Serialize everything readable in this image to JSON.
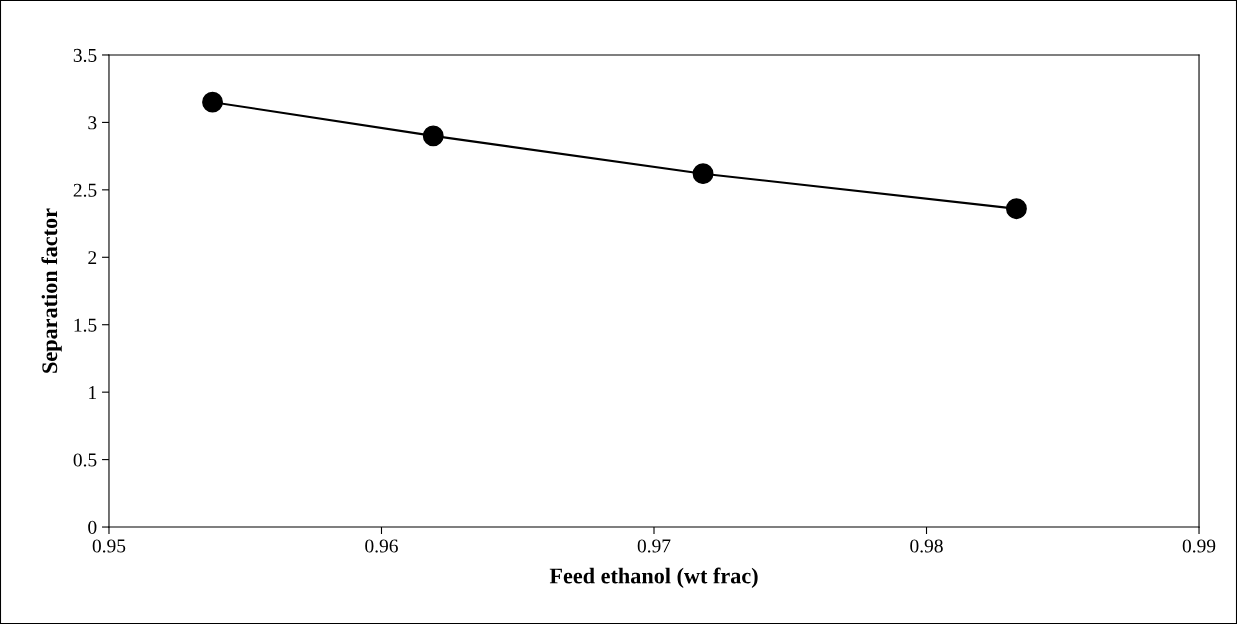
{
  "chart_data": {
    "type": "line",
    "xlabel": "Feed ethanol (wt frac)",
    "ylabel": "Separation factor",
    "x": [
      0.9538,
      0.9619,
      0.9718,
      0.9833
    ],
    "series": [
      {
        "color": "#000000",
        "values": [
          3.15,
          2.9,
          2.62,
          2.36
        ]
      }
    ],
    "xlim": [
      0.95,
      0.99
    ],
    "xticks": [
      0.95,
      0.96,
      0.97,
      0.98,
      0.99
    ],
    "ylim": [
      0,
      3.5
    ],
    "yticks": [
      0,
      0.5,
      1,
      1.5,
      2,
      2.5,
      3,
      3.5
    ],
    "grid": false,
    "legend": false,
    "marker": "circle",
    "line_style": "solid"
  }
}
